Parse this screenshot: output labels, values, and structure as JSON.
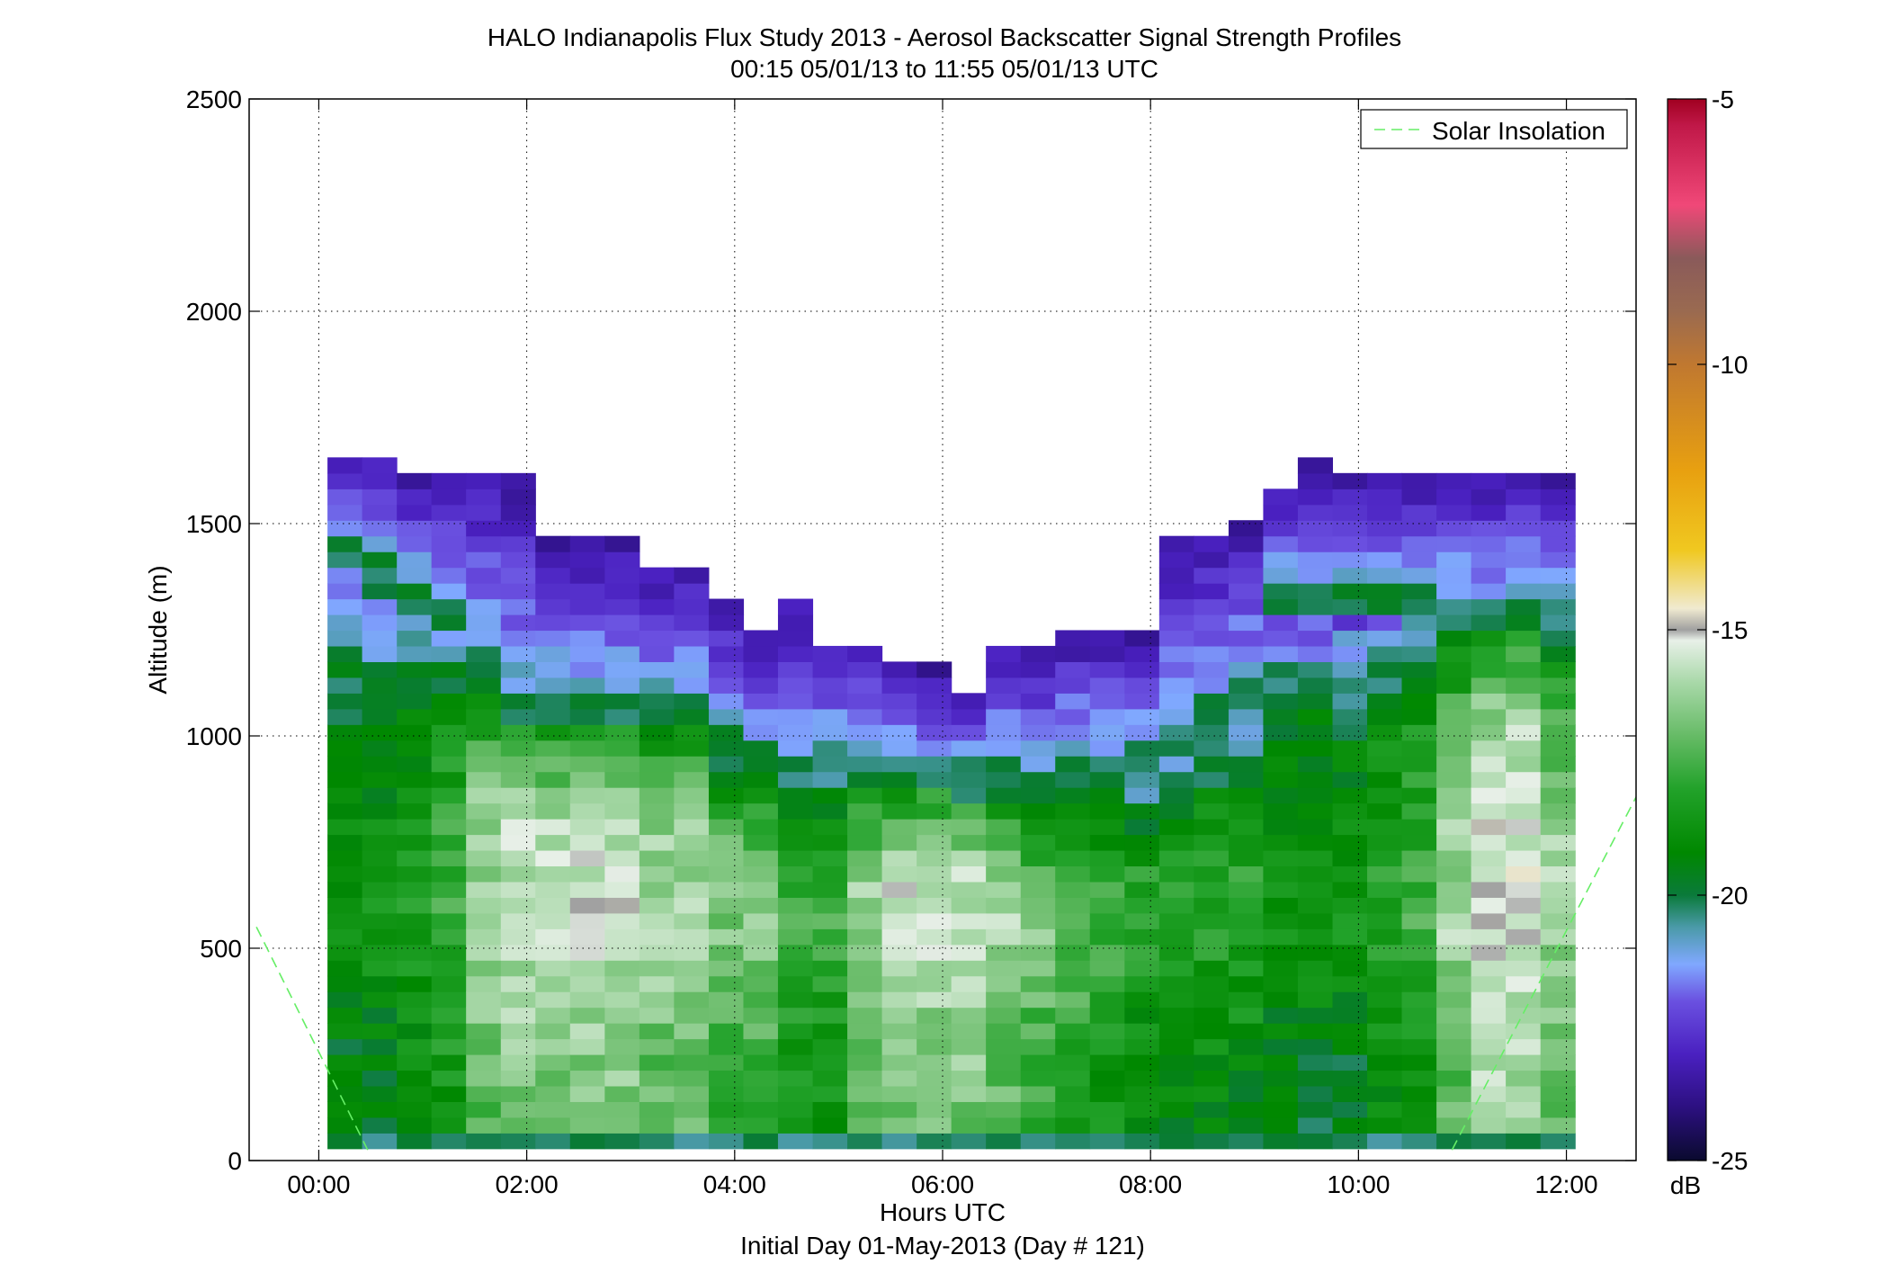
{
  "chart_data": {
    "type": "heatmap",
    "title": "HALO Indianapolis Flux Study 2013 - Aerosol Backscatter Signal Strength Profiles",
    "subtitle": "00:15 05/01/13 to 11:55 05/01/13  UTC",
    "xlabel": "Hours UTC",
    "xlabel2": "Initial Day 01-May-2013 (Day # 121)",
    "ylabel": "Altitude (m)",
    "x_ticks": [
      "00:00",
      "02:00",
      "04:00",
      "06:00",
      "08:00",
      "10:00",
      "12:00"
    ],
    "x_tick_values": [
      0,
      2,
      4,
      6,
      8,
      10,
      12
    ],
    "xlim": [
      -0.67,
      12.67
    ],
    "y_ticks": [
      "0",
      "500",
      "1000",
      "1500",
      "2000",
      "2500"
    ],
    "y_tick_values": [
      0,
      500,
      1000,
      1500,
      2000,
      2500
    ],
    "ylim": [
      0,
      2500
    ],
    "grid": true,
    "legend": {
      "label": "Solar Insolation",
      "placement": "top-right",
      "color": "#66ee66",
      "style": "dashed"
    },
    "solar_insolation": [
      {
        "x": [
          -0.6,
          0.47
        ],
        "y": [
          550,
          25
        ]
      },
      {
        "x": [
          10.9,
          12.7
        ],
        "y": [
          25,
          870
        ]
      }
    ],
    "colorbar": {
      "label": "dB",
      "ticks": [
        "-5",
        "-10",
        "-15",
        "-20",
        "-25"
      ],
      "tick_values": [
        -5,
        -10,
        -15,
        -20,
        -25
      ],
      "range": [
        -25,
        -5
      ],
      "stops": [
        [
          -25,
          "#0a0a2e"
        ],
        [
          -24,
          "#2c1080"
        ],
        [
          -23,
          "#4a20c0"
        ],
        [
          -22,
          "#6a50e0"
        ],
        [
          -21.3,
          "#80a8ff"
        ],
        [
          -20.6,
          "#4a9aa8"
        ],
        [
          -20,
          "#0a7a3a"
        ],
        [
          -19.2,
          "#008800"
        ],
        [
          -18,
          "#22a22a"
        ],
        [
          -17,
          "#66bb66"
        ],
        [
          -16,
          "#a8d8a8"
        ],
        [
          -15.2,
          "#e8f0e8"
        ],
        [
          -15,
          "#a0a0a0"
        ],
        [
          -14.6,
          "#f0ead0"
        ],
        [
          -13.5,
          "#f0c820"
        ],
        [
          -12,
          "#e8a010"
        ],
        [
          -10,
          "#c07830"
        ],
        [
          -9,
          "#9a6a50"
        ],
        [
          -8,
          "#8a5a5a"
        ],
        [
          -7,
          "#f04878"
        ],
        [
          -5.5,
          "#c01848"
        ],
        [
          -5,
          "#a00020"
        ]
      ]
    },
    "profile_times": [
      0.25,
      0.583,
      0.917,
      1.25,
      1.583,
      1.917,
      2.25,
      2.583,
      2.917,
      3.25,
      3.583,
      3.917,
      4.25,
      4.583,
      4.917,
      5.25,
      5.583,
      5.917,
      6.25,
      6.583,
      6.917,
      7.25,
      7.583,
      7.917,
      8.25,
      8.583,
      8.917,
      9.25,
      9.583,
      9.917,
      10.25,
      10.583,
      10.917,
      11.25,
      11.583,
      11.917
    ],
    "profile_top_m": [
      1640,
      1640,
      1600,
      1600,
      1600,
      1600,
      1450,
      1450,
      1450,
      1370,
      1370,
      1300,
      1220,
      1300,
      1210,
      1210,
      1140,
      1140,
      1100,
      1200,
      1200,
      1220,
      1220,
      1220,
      1450,
      1450,
      1490,
      1570,
      1640,
      1600,
      1600,
      1600,
      1600,
      1600,
      1600,
      1600
    ],
    "boundary_layer_top_m": [
      1450,
      1400,
      1350,
      1320,
      1200,
      1100,
      1100,
      1100,
      1100,
      1100,
      1100,
      1000,
      980,
      940,
      960,
      950,
      930,
      930,
      920,
      920,
      900,
      950,
      950,
      980,
      1010,
      1070,
      1110,
      1340,
      1340,
      1330,
      1330,
      1330,
      1310,
      1300,
      1310,
      1290
    ],
    "surface_signal_db": [
      -19.5,
      -19.5,
      -19,
      -18.5,
      -17,
      -16.5,
      -16.5,
      -16.5,
      -16.5,
      -17,
      -17,
      -17.5,
      -17.5,
      -18.5,
      -18.5,
      -17,
      -16.5,
      -16.5,
      -16.5,
      -17,
      -17.5,
      -18,
      -18.5,
      -19,
      -19,
      -19,
      -19,
      -19.5,
      -19.5,
      -19.5,
      -19,
      -18.5,
      -17,
      -16,
      -16,
      -17
    ]
  }
}
